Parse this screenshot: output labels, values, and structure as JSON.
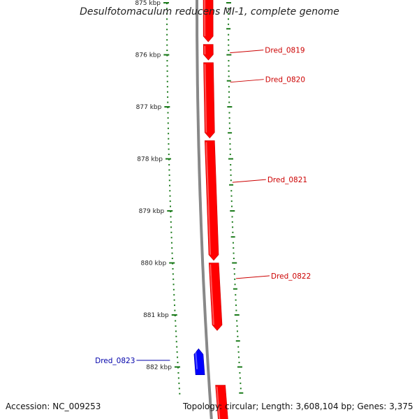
{
  "title": "Desulfotomaculum reducens MI-1, complete genome",
  "accession": "Accession: NC_009253",
  "summary": "Topology: circular; Length: 3,608,104 bp; Genes: 3,375",
  "colors": {
    "backbone": "#888888",
    "ticks": "#1a7a1a",
    "forward_gene": "#ff0000",
    "reverse_gene": "#0000ff",
    "label_forward": "#cc0000",
    "label_reverse": "#0000aa"
  },
  "ticks": [
    {
      "label": "875 kbp",
      "kbp": 875
    },
    {
      "label": "876 kbp",
      "kbp": 876
    },
    {
      "label": "877 kbp",
      "kbp": 877
    },
    {
      "label": "878 kbp",
      "kbp": 878
    },
    {
      "label": "879 kbp",
      "kbp": 879
    },
    {
      "label": "880 kbp",
      "kbp": 880
    },
    {
      "label": "881 kbp",
      "kbp": 881
    },
    {
      "label": "882 kbp",
      "kbp": 882
    }
  ],
  "genes": [
    {
      "name": "",
      "strand": "+",
      "start_kbp": 874.6,
      "end_kbp": 875.75
    },
    {
      "name": "Dred_0819",
      "strand": "+",
      "start_kbp": 875.8,
      "end_kbp": 876.1
    },
    {
      "name": "Dred_0820",
      "strand": "+",
      "start_kbp": 876.15,
      "end_kbp": 877.6
    },
    {
      "name": "Dred_0821",
      "strand": "+",
      "start_kbp": 877.65,
      "end_kbp": 879.95
    },
    {
      "name": "Dred_0822",
      "strand": "+",
      "start_kbp": 880.0,
      "end_kbp": 881.3
    },
    {
      "name": "Dred_0823",
      "strand": "-",
      "start_kbp": 881.65,
      "end_kbp": 882.15
    },
    {
      "name": "",
      "strand": "+",
      "start_kbp": 882.35,
      "end_kbp": 883.2
    }
  ]
}
